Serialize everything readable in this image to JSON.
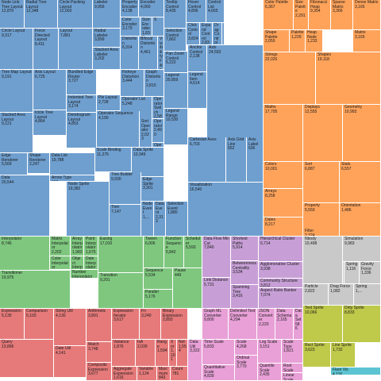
{
  "chart_data": {
    "type": "treemap",
    "title": "",
    "colors": {
      "vis": "#6f9fcf",
      "data": "#ffa35a",
      "animate": "#7fc77f",
      "physics": "#c9c9c9",
      "util": "#c79fd6",
      "analytics": "#e67a7a",
      "query": "#e67a7a",
      "scale": "#e8a0d7",
      "display": "#ffa35a",
      "flex": "#5cc3d2",
      "geometry": "#bfc94a"
    },
    "nodes": [
      {
        "id": 1,
        "group": "vis",
        "label": "Node Link Tree Layout",
        "value": "12,870"
      },
      {
        "id": 2,
        "group": "vis",
        "label": "Radial Tree Layout",
        "value": "12,348"
      },
      {
        "id": 3,
        "group": "vis",
        "label": "Circle Packing Layout",
        "value": "12,003"
      },
      {
        "id": 4,
        "group": "vis",
        "label": "Labeler",
        "value": "9,956"
      },
      {
        "id": 5,
        "group": "vis",
        "label": "Property Encoder",
        "value": "4,138"
      },
      {
        "id": 6,
        "group": "vis",
        "label": "Encoder",
        "value": "4,060"
      },
      {
        "id": 7,
        "group": "vis",
        "label": "Tooltip Control",
        "value": "8,435"
      },
      {
        "id": 8,
        "group": "vis",
        "label": "Hover Control",
        "value": "4,896"
      },
      {
        "id": 9,
        "group": "vis",
        "label": "Control List",
        "value": "4,665"
      },
      {
        "id": 10,
        "group": "vis",
        "label": "Selection Control",
        "value": "7,862"
      },
      {
        "id": 11,
        "group": "vis",
        "label": "Click Control",
        "value": "3,824"
      },
      {
        "id": 12,
        "group": "vis",
        "label": "Expand Control",
        "value": "2,832"
      },
      {
        "id": 13,
        "group": "vis",
        "label": "Drag Control",
        "value": "2,649"
      },
      {
        "id": 14,
        "group": "vis",
        "label": "I",
        "value": ""
      },
      {
        "id": 15,
        "group": "vis",
        "label": "Radial Labeler",
        "value": "3,899"
      },
      {
        "id": 16,
        "group": "vis",
        "label": "Stacked Area Labeler",
        "value": "3,202"
      },
      {
        "id": 17,
        "group": "vis",
        "label": "Color Encoder",
        "value": "3,179"
      },
      {
        "id": 18,
        "group": "vis",
        "label": "Size Encoder",
        "value": "1,830"
      },
      {
        "id": 19,
        "group": "vis",
        "label": "S",
        "value": ""
      },
      {
        "id": 20,
        "group": "vis",
        "label": "Pan Zoom Control",
        "value": "5,222"
      },
      {
        "id": 21,
        "group": "vis",
        "label": "Anchor Control",
        "value": "2,138"
      },
      {
        "id": 22,
        "group": "vis",
        "label": "Circle Layout",
        "value": "9,317"
      },
      {
        "id": 23,
        "group": "vis",
        "label": "Force Directed Layout",
        "value": "8,411"
      },
      {
        "id": 24,
        "group": "vis",
        "label": "Layout",
        "value": "7,881"
      },
      {
        "id": 25,
        "group": "vis",
        "label": "Distortion",
        "value": "6,314"
      },
      {
        "id": 26,
        "group": "vis",
        "label": "Bifocal Distortion",
        "value": "4,461"
      },
      {
        "id": 27,
        "group": "vis",
        "label": "Fisheye Tree Filter",
        "value": "5,219"
      },
      {
        "id": 28,
        "group": "vis",
        "label": "Visibility Filter",
        "value": "3,147"
      },
      {
        "id": 29,
        "group": "vis",
        "label": "Legend",
        "value": "20,859"
      },
      {
        "id": 30,
        "group": "vis",
        "label": "Legend Item",
        "value": "4,614"
      },
      {
        "id": 31,
        "group": "vis",
        "label": "Legend Range",
        "value": "10,530"
      },
      {
        "id": 32,
        "group": "vis",
        "label": "Axis Layout",
        "value": "6,725"
      },
      {
        "id": 33,
        "group": "vis",
        "label": "Bundled Edge Router",
        "value": "3,727"
      },
      {
        "id": 34,
        "group": "vis",
        "label": "Fisheye Distortion",
        "value": "3,444"
      },
      {
        "id": 35,
        "group": "vis",
        "label": "Graph Distortion",
        "value": "2,810"
      },
      {
        "id": 36,
        "group": "vis",
        "label": "Axis",
        "value": "24,593"
      },
      {
        "id": 37,
        "group": "vis",
        "label": "Tree Map Layout",
        "value": "9,191"
      },
      {
        "id": 38,
        "group": "vis",
        "label": "Indented Tree Layout",
        "value": "3,174"
      },
      {
        "id": 39,
        "group": "vis",
        "label": "Pie Layout",
        "value": "2,728"
      },
      {
        "id": 40,
        "group": "vis",
        "label": "Operator List",
        "value": "5,248"
      },
      {
        "id": 41,
        "group": "vis",
        "label": "Operator Switch",
        "value": "2,581"
      },
      {
        "id": 42,
        "group": "vis",
        "label": "Operator",
        "value": "2,490"
      },
      {
        "id": 43,
        "group": "vis",
        "label": "Stacked Area Layout",
        "value": "9,121"
      },
      {
        "id": 44,
        "group": "vis",
        "label": "Icicle Tree Layout",
        "value": "4,864"
      },
      {
        "id": 45,
        "group": "vis",
        "label": "Dendrogram Layout",
        "value": "4,853"
      },
      {
        "id": 46,
        "group": "vis",
        "label": "Operator Sequence",
        "value": "4,190"
      },
      {
        "id": 47,
        "group": "vis",
        "label": "Sort Operator",
        "value": "2,023"
      },
      {
        "id": 48,
        "group": "vis",
        "label": "Operator",
        "value": "1,..."
      },
      {
        "id": 49,
        "group": "vis",
        "label": "Cartesian Axes",
        "value": "6,703"
      },
      {
        "id": 50,
        "group": "vis",
        "label": "Axis Grid Line",
        "value": "652"
      },
      {
        "id": 51,
        "group": "vis",
        "label": "Axis Label",
        "value": "636"
      },
      {
        "id": 52,
        "group": "vis",
        "label": "Edge Renderer",
        "value": "5,569"
      },
      {
        "id": 53,
        "group": "vis",
        "label": "Shape Renderer",
        "value": "2,247"
      },
      {
        "id": 54,
        "group": "vis",
        "label": "Data List",
        "value": "19,788"
      },
      {
        "id": 55,
        "group": "vis",
        "label": "Scale Binding",
        "value": "11,275"
      },
      {
        "id": 56,
        "group": "vis",
        "label": "Data Sprite",
        "value": "10,349"
      },
      {
        "id": 57,
        "group": "vis",
        "label": "Arrow Type",
        "value": "698"
      },
      {
        "id": 58,
        "group": "vis",
        "label": "Data",
        "value": "20,544"
      },
      {
        "id": 59,
        "group": "vis",
        "label": "Node Sprite",
        "value": "19,382"
      },
      {
        "id": 60,
        "group": "vis",
        "label": "Tree Builder",
        "value": "9,930"
      },
      {
        "id": 61,
        "group": "vis",
        "label": "Tree",
        "value": "7,147"
      },
      {
        "id": 62,
        "group": "vis",
        "label": "Edge Sprite",
        "value": "3,301"
      },
      {
        "id": 63,
        "group": "vis",
        "label": "Node Event",
        "value": "1,..."
      },
      {
        "id": 64,
        "group": "vis",
        "label": "Data Event",
        "value": "2,313"
      },
      {
        "id": 65,
        "group": "vis",
        "label": "Selection Event",
        "value": "1,880"
      },
      {
        "id": 66,
        "group": "vis",
        "label": "Visualization",
        "value": "16,540"
      },
      {
        "id": 67,
        "group": "data",
        "label": "Color Palette",
        "value": "6,367"
      },
      {
        "id": 68,
        "group": "data",
        "label": "Size Palette",
        "value": "2,291"
      },
      {
        "id": 69,
        "group": "data",
        "label": "Fibonacci Heap",
        "value": "9,354"
      },
      {
        "id": 70,
        "group": "data",
        "label": "Sparse Matrix",
        "value": "3,366"
      },
      {
        "id": 71,
        "group": "data",
        "label": "Dense Matrix",
        "value": "3,165"
      },
      {
        "id": 72,
        "group": "data",
        "label": "Shape Palette",
        "value": "2,059"
      },
      {
        "id": 73,
        "group": "data",
        "label": "Palette",
        "value": "1,229"
      },
      {
        "id": 74,
        "group": "data",
        "label": "Heap Node",
        "value": "1,233"
      },
      {
        "id": 75,
        "group": "data",
        "label": "Matrix",
        "value": "3,165"
      },
      {
        "id": 76,
        "group": "data",
        "label": "Strings",
        "value": "22,026"
      },
      {
        "id": 77,
        "group": "data",
        "label": "Shapes",
        "value": "19,118"
      },
      {
        "id": 78,
        "group": "data",
        "label": "Maths",
        "value": "17,705"
      },
      {
        "id": 79,
        "group": "data",
        "label": "Displays",
        "value": "12,555"
      },
      {
        "id": 80,
        "group": "data",
        "label": "Geometry",
        "value": "10,993"
      },
      {
        "id": 81,
        "group": "data",
        "label": "Colors",
        "value": "10,001"
      },
      {
        "id": 82,
        "group": "data",
        "label": "Sort",
        "value": "6,887"
      },
      {
        "id": 83,
        "group": "data",
        "label": "Stats",
        "value": "6,557"
      },
      {
        "id": 84,
        "group": "data",
        "label": "Arrays",
        "value": "8,258"
      },
      {
        "id": 85,
        "group": "data",
        "label": "Property",
        "value": "5,559"
      },
      {
        "id": 86,
        "group": "data",
        "label": "Orientation",
        "value": "1,486"
      },
      {
        "id": 87,
        "group": "data",
        "label": "Dates",
        "value": "8,217"
      },
      {
        "id": 88,
        "group": "data",
        "label": "Filter",
        "value": "2,324"
      },
      {
        "id": 89,
        "group": "animate",
        "label": "Interpolator",
        "value": "8,746"
      },
      {
        "id": 90,
        "group": "animate",
        "label": "Matrix Interpolator",
        "value": "2,202"
      },
      {
        "id": 91,
        "group": "animate",
        "label": "Array Interpolator",
        "value": "1,983"
      },
      {
        "id": 92,
        "group": "animate",
        "label": "Point Interpolator",
        "value": "1,675"
      },
      {
        "id": 93,
        "group": "animate",
        "label": "Color Interpolator",
        "value": "2,047"
      },
      {
        "id": 94,
        "group": "animate",
        "label": "Object Interpolator",
        "value": "1,629"
      },
      {
        "id": 95,
        "group": "animate",
        "label": "Date Interpolator",
        "value": "1,375"
      },
      {
        "id": 96,
        "group": "animate",
        "label": "Number Interpolator",
        "value": "1,382"
      },
      {
        "id": 97,
        "group": "animate",
        "label": "Easing",
        "value": "17,010"
      },
      {
        "id": 98,
        "group": "animate",
        "label": "Tween",
        "value": "6,006"
      },
      {
        "id": 99,
        "group": "animate",
        "label": "Function Sequence",
        "value": "5,842"
      },
      {
        "id": 100,
        "group": "animate",
        "label": "Scheduler",
        "value": "5,593"
      },
      {
        "id": 101,
        "group": "animate",
        "label": "Transitioner",
        "value": "19,975"
      },
      {
        "id": 102,
        "group": "animate",
        "label": "Transition",
        "value": "9,201"
      },
      {
        "id": 103,
        "group": "animate",
        "label": "Sequence",
        "value": "5,534"
      },
      {
        "id": 104,
        "group": "animate",
        "label": "Parallel",
        "value": "5,176"
      },
      {
        "id": 105,
        "group": "animate",
        "label": "Pause",
        "value": "449"
      },
      {
        "id": 106,
        "group": "util",
        "label": "Data Flow Min Cut",
        "value": "7,840"
      },
      {
        "id": 107,
        "group": "util",
        "label": "Shortest Paths",
        "value": "5,914"
      },
      {
        "id": 108,
        "group": "util",
        "label": "Hierarchical Cluster",
        "value": "6,714"
      },
      {
        "id": 109,
        "group": "util",
        "label": "Link Distance",
        "value": "5,731"
      },
      {
        "id": 110,
        "group": "util",
        "label": "Betweenness Centrality",
        "value": "3,534"
      },
      {
        "id": 111,
        "group": "util",
        "label": "Agglomerative Cluster",
        "value": "3,938"
      },
      {
        "id": 112,
        "group": "util",
        "label": "Community Structure",
        "value": "3,812"
      },
      {
        "id": 113,
        "group": "util",
        "label": "Spanning Tree",
        "value": "3,416"
      },
      {
        "id": 114,
        "group": "util",
        "label": "Aspect Ratio Banker",
        "value": "7,074"
      },
      {
        "id": 115,
        "group": "physics",
        "label": "Node Sprite Force Simulation",
        "value": "10,498"
      },
      {
        "id": 116,
        "group": "physics",
        "label": "Simulation",
        "value": "9,983"
      },
      {
        "id": 117,
        "group": "physics",
        "label": "Particle",
        "value": "2,822"
      },
      {
        "id": 118,
        "group": "physics",
        "label": "Spring Force",
        "value": "1,681"
      },
      {
        "id": 119,
        "group": "physics",
        "label": "Spring",
        "value": "1,116"
      },
      {
        "id": 120,
        "group": "physics",
        "label": "Gravity Force",
        "value": "1,336"
      },
      {
        "id": 121,
        "group": "physics",
        "label": "Nbody",
        "value": "10,498"
      },
      {
        "id": 122,
        "group": "physics",
        "label": "Drag Force",
        "value": "1,082"
      },
      {
        "id": 123,
        "group": "physics",
        "label": "Spring",
        "value": "1,..."
      },
      {
        "id": 124,
        "group": "geometry",
        "label": "Text Sprite",
        "value": "10,066"
      },
      {
        "id": 125,
        "group": "geometry",
        "label": "Rect Sprite",
        "value": "3,623"
      },
      {
        "id": 126,
        "group": "geometry",
        "label": "Line Sprite",
        "value": "1,732"
      },
      {
        "id": 127,
        "group": "geometry",
        "label": "Dirty Sprite",
        "value": "8,833"
      },
      {
        "id": 128,
        "group": "flex",
        "label": "Flare Vis",
        "value": "4,116"
      },
      {
        "id": 129,
        "group": "query",
        "label": "Expression",
        "value": "5,130"
      },
      {
        "id": 130,
        "group": "query",
        "label": "Comparison",
        "value": "5,103"
      },
      {
        "id": 131,
        "group": "query",
        "label": "Query",
        "value": "13,896"
      },
      {
        "id": 132,
        "group": "query",
        "label": "String Util",
        "value": "4,130"
      },
      {
        "id": 133,
        "group": "query",
        "label": "Arithmetic",
        "value": "3,891"
      },
      {
        "id": 134,
        "group": "query",
        "label": "Match",
        "value": "3,748"
      },
      {
        "id": 135,
        "group": "query",
        "label": "Composite Expression",
        "value": "3,677"
      },
      {
        "id": 136,
        "group": "query",
        "label": "Date Util",
        "value": "4,141"
      },
      {
        "id": 137,
        "group": "query",
        "label": "Expression Iterator",
        "value": "3,617"
      },
      {
        "id": 138,
        "group": "query",
        "label": "Fn",
        "value": "3,240"
      },
      {
        "id": 139,
        "group": "query",
        "label": "Binary Expression",
        "value": "2,893"
      },
      {
        "id": 140,
        "group": "query",
        "label": "Variance",
        "value": "1,876"
      },
      {
        "id": 141,
        "group": "query",
        "label": "IsA",
        "value": "2,039"
      },
      {
        "id": 142,
        "group": "query",
        "label": "Range",
        "value": "1,594"
      },
      {
        "id": 143,
        "group": "query",
        "label": "Xor",
        "value": "1,101"
      },
      {
        "id": 144,
        "group": "query",
        "label": "Literal",
        "value": "1,214"
      },
      {
        "id": 145,
        "group": "query",
        "label": "Aggregate Expression",
        "value": "1,616"
      },
      {
        "id": 146,
        "group": "query",
        "label": "Variable",
        "value": "1,124"
      },
      {
        "id": 147,
        "group": "query",
        "label": "Maximum",
        "value": "843"
      },
      {
        "id": 148,
        "group": "query",
        "label": "Count",
        "value": "781"
      },
      {
        "id": 149,
        "group": "query",
        "label": "Not",
        "value": "1,554"
      },
      {
        "id": 150,
        "group": "scale",
        "label": "Graph ML Converter",
        "value": "9,800"
      },
      {
        "id": 151,
        "group": "scale",
        "label": "Delimited Text Converter",
        "value": "4,294"
      },
      {
        "id": 152,
        "group": "scale",
        "label": "JSON Converter",
        "value": "2,220"
      },
      {
        "id": 153,
        "group": "scale",
        "label": "Data Schema",
        "value": "2,165"
      },
      {
        "id": 154,
        "group": "scale",
        "label": "Data Set",
        "value": "586"
      },
      {
        "id": 155,
        "group": "scale",
        "label": "Data Field",
        "value": "1,759"
      },
      {
        "id": 156,
        "group": "scale",
        "label": "Data Util",
        "value": "3,322"
      },
      {
        "id": 157,
        "group": "scale",
        "label": "Time Scale",
        "value": "5,833"
      },
      {
        "id": 158,
        "group": "scale",
        "label": "Scale",
        "value": "4,268"
      },
      {
        "id": 159,
        "group": "scale",
        "label": "Log Scale",
        "value": "3,151"
      },
      {
        "id": 160,
        "group": "scale",
        "label": "Scale Type",
        "value": "1,821"
      },
      {
        "id": 161,
        "group": "scale",
        "label": "Quantitative Scale",
        "value": "4,839"
      },
      {
        "id": 162,
        "group": "scale",
        "label": "Ordinal Scale",
        "value": "3,770"
      },
      {
        "id": 163,
        "group": "scale",
        "label": "Quantile Scale",
        "value": "2,435"
      },
      {
        "id": 164,
        "group": "scale",
        "label": "Root Scale",
        "value": "1,756"
      },
      {
        "id": 165,
        "group": "scale",
        "label": "Linear Scale",
        "value": "1,316"
      }
    ]
  }
}
